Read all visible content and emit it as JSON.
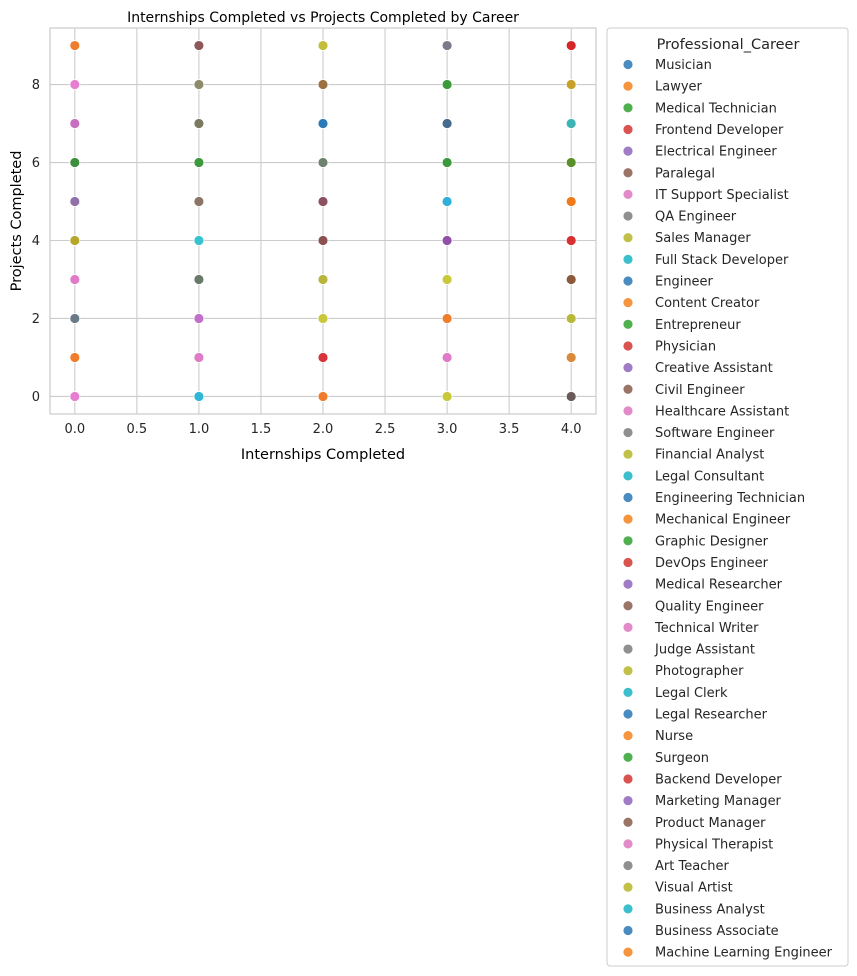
{
  "chart_data": {
    "type": "scatter",
    "title": "Internships Completed vs Projects Completed by Career",
    "xlabel": "Internships Completed",
    "ylabel": "Projects Completed",
    "xlim": [
      -0.2,
      4.2
    ],
    "ylim": [
      -0.45,
      9.45
    ],
    "xticks": [
      0.0,
      0.5,
      1.0,
      1.5,
      2.0,
      2.5,
      3.0,
      3.5,
      4.0
    ],
    "xtick_labels": [
      "0.0",
      "0.5",
      "1.0",
      "1.5",
      "2.0",
      "2.5",
      "3.0",
      "3.5",
      "4.0"
    ],
    "yticks": [
      0,
      2,
      4,
      6,
      8
    ],
    "ytick_labels": [
      "0",
      "2",
      "4",
      "6",
      "8"
    ],
    "grid": true,
    "legend_position": "outside-right",
    "legend_title": "Professional_Career",
    "series": [
      {
        "name": "Musician",
        "color": "#4a8cc0"
      },
      {
        "name": "Lawyer",
        "color": "#f7953f"
      },
      {
        "name": "Medical Technician",
        "color": "#4fb04f"
      },
      {
        "name": "Frontend Developer",
        "color": "#d9534f"
      },
      {
        "name": "Electrical Engineer",
        "color": "#a07cc6"
      },
      {
        "name": "Paralegal",
        "color": "#9b7468"
      },
      {
        "name": "IT Support Specialist",
        "color": "#e38bc9"
      },
      {
        "name": "QA Engineer",
        "color": "#8f8f8f"
      },
      {
        "name": "Sales Manager",
        "color": "#c1c14a"
      },
      {
        "name": "Full Stack Developer",
        "color": "#3cbfcc"
      },
      {
        "name": "Engineer",
        "color": "#4a8cc0"
      },
      {
        "name": "Content Creator",
        "color": "#f7953f"
      },
      {
        "name": "Entrepreneur",
        "color": "#4fb04f"
      },
      {
        "name": "Physician",
        "color": "#d9534f"
      },
      {
        "name": "Creative Assistant",
        "color": "#a07cc6"
      },
      {
        "name": "Civil Engineer",
        "color": "#9b7468"
      },
      {
        "name": "Healthcare Assistant",
        "color": "#e38bc9"
      },
      {
        "name": "Software Engineer",
        "color": "#8f8f8f"
      },
      {
        "name": "Financial Analyst",
        "color": "#c1c14a"
      },
      {
        "name": "Legal Consultant",
        "color": "#3cbfcc"
      },
      {
        "name": "Engineering Technician",
        "color": "#4a8cc0"
      },
      {
        "name": "Mechanical Engineer",
        "color": "#f7953f"
      },
      {
        "name": "Graphic Designer",
        "color": "#4fb04f"
      },
      {
        "name": "DevOps Engineer",
        "color": "#d9534f"
      },
      {
        "name": "Medical Researcher",
        "color": "#a07cc6"
      },
      {
        "name": "Quality Engineer",
        "color": "#9b7468"
      },
      {
        "name": "Technical Writer",
        "color": "#e38bc9"
      },
      {
        "name": "Judge Assistant",
        "color": "#8f8f8f"
      },
      {
        "name": "Photographer",
        "color": "#c1c14a"
      },
      {
        "name": "Legal Clerk",
        "color": "#3cbfcc"
      },
      {
        "name": "Legal Researcher",
        "color": "#4a8cc0"
      },
      {
        "name": "Nurse",
        "color": "#f7953f"
      },
      {
        "name": "Surgeon",
        "color": "#4fb04f"
      },
      {
        "name": "Backend Developer",
        "color": "#d9534f"
      },
      {
        "name": "Marketing Manager",
        "color": "#a07cc6"
      },
      {
        "name": "Product Manager",
        "color": "#9b7468"
      },
      {
        "name": "Physical Therapist",
        "color": "#e38bc9"
      },
      {
        "name": "Art Teacher",
        "color": "#8f8f8f"
      },
      {
        "name": "Visual Artist",
        "color": "#c1c14a"
      },
      {
        "name": "Business Analyst",
        "color": "#3cbfcc"
      },
      {
        "name": "Business Associate",
        "color": "#4a8cc0"
      },
      {
        "name": "Machine Learning Engineer",
        "color": "#f7953f"
      }
    ],
    "points": [
      {
        "x": 0,
        "y": 9,
        "color": "#ef7d2b"
      },
      {
        "x": 0,
        "y": 8,
        "color": "#e77fd0"
      },
      {
        "x": 0,
        "y": 7,
        "color": "#c86fc0"
      },
      {
        "x": 0,
        "y": 6,
        "color": "#3d8f3d"
      },
      {
        "x": 0,
        "y": 5,
        "color": "#9072a8"
      },
      {
        "x": 0,
        "y": 4,
        "color": "#b5a72a"
      },
      {
        "x": 0,
        "y": 3,
        "color": "#e07bc8"
      },
      {
        "x": 0,
        "y": 2,
        "color": "#6a7a88"
      },
      {
        "x": 0,
        "y": 1,
        "color": "#ef7d2b"
      },
      {
        "x": 0,
        "y": 0,
        "color": "#e77fd0"
      },
      {
        "x": 1,
        "y": 9,
        "color": "#8c5858"
      },
      {
        "x": 1,
        "y": 8,
        "color": "#8c8c6a"
      },
      {
        "x": 1,
        "y": 7,
        "color": "#7a7a62"
      },
      {
        "x": 1,
        "y": 6,
        "color": "#3c9a3c"
      },
      {
        "x": 1,
        "y": 5,
        "color": "#8c7466"
      },
      {
        "x": 1,
        "y": 4,
        "color": "#35c3cf"
      },
      {
        "x": 1,
        "y": 3,
        "color": "#6a7a6a"
      },
      {
        "x": 1,
        "y": 2,
        "color": "#c070c8"
      },
      {
        "x": 1,
        "y": 1,
        "color": "#e07bc8"
      },
      {
        "x": 1,
        "y": 0,
        "color": "#2eb7d6"
      },
      {
        "x": 2,
        "y": 9,
        "color": "#c2bd3a"
      },
      {
        "x": 2,
        "y": 8,
        "color": "#9c7040"
      },
      {
        "x": 2,
        "y": 7,
        "color": "#2b7ab8"
      },
      {
        "x": 2,
        "y": 6,
        "color": "#6f8270"
      },
      {
        "x": 2,
        "y": 5,
        "color": "#8c5060"
      },
      {
        "x": 2,
        "y": 4,
        "color": "#8c5050"
      },
      {
        "x": 2,
        "y": 3,
        "color": "#b8b53a"
      },
      {
        "x": 2,
        "y": 2,
        "color": "#c8c83a"
      },
      {
        "x": 2,
        "y": 1,
        "color": "#d8343a"
      },
      {
        "x": 2,
        "y": 0,
        "color": "#ef7d2b"
      },
      {
        "x": 3,
        "y": 9,
        "color": "#7a7a8a"
      },
      {
        "x": 3,
        "y": 8,
        "color": "#3c9a3c"
      },
      {
        "x": 3,
        "y": 7,
        "color": "#446a8c"
      },
      {
        "x": 3,
        "y": 6,
        "color": "#3c9a3c"
      },
      {
        "x": 3,
        "y": 5,
        "color": "#2eb0d8"
      },
      {
        "x": 3,
        "y": 4,
        "color": "#9050a8"
      },
      {
        "x": 3,
        "y": 3,
        "color": "#c8c83a"
      },
      {
        "x": 3,
        "y": 2,
        "color": "#ef7d2b"
      },
      {
        "x": 3,
        "y": 1,
        "color": "#e07bc8"
      },
      {
        "x": 3,
        "y": 0,
        "color": "#c8c83a"
      },
      {
        "x": 4,
        "y": 9,
        "color": "#d62728"
      },
      {
        "x": 4,
        "y": 8,
        "color": "#c8a028"
      },
      {
        "x": 4,
        "y": 7,
        "color": "#3cb4b4"
      },
      {
        "x": 4,
        "y": 6,
        "color": "#5a902a"
      },
      {
        "x": 4,
        "y": 5,
        "color": "#f07a1a"
      },
      {
        "x": 4,
        "y": 4,
        "color": "#d83030"
      },
      {
        "x": 4,
        "y": 3,
        "color": "#8c5a3a"
      },
      {
        "x": 4,
        "y": 2,
        "color": "#b8b83a"
      },
      {
        "x": 4,
        "y": 1,
        "color": "#d88a3a"
      },
      {
        "x": 4,
        "y": 0,
        "color": "#6a5a5a"
      }
    ]
  }
}
